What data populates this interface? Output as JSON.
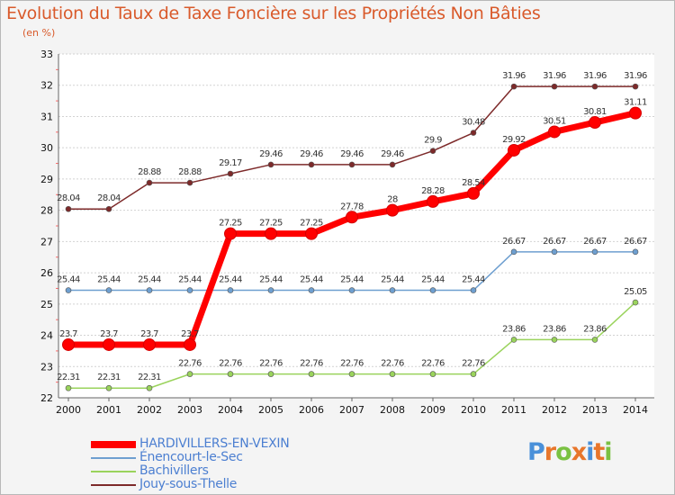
{
  "chart_title": "Evolution du Taux de Taxe Foncière sur les Propriétés Non Bâties",
  "unit_label": "(en %)",
  "logo": {
    "text": "Proxiti",
    "letter_colors": [
      "#4a90d9",
      "#e8762b",
      "#7ac142",
      "#e8762b",
      "#4a90d9",
      "#e8762b",
      "#7ac142"
    ]
  },
  "chart_data": {
    "type": "line",
    "title": "Evolution du Taux de Taxe Foncière sur les Propriétés Non Bâties",
    "ylabel": "(en %)",
    "xlabel": "",
    "x": [
      "2000",
      "2001",
      "2002",
      "2003",
      "2004",
      "2005",
      "2006",
      "2007",
      "2008",
      "2009",
      "2010",
      "2011",
      "2012",
      "2013",
      "2014"
    ],
    "ylim": [
      22,
      33
    ],
    "yticks": [
      "22",
      "23",
      "24",
      "25",
      "26",
      "27",
      "28",
      "29",
      "30",
      "31",
      "32",
      "33"
    ],
    "grid": "horizontal",
    "legend_position": "bottom-left",
    "series": [
      {
        "name": "HARDIVILLERS-EN-VEXIN",
        "color": "#ff0000",
        "values": [
          23.7,
          23.7,
          23.7,
          23.7,
          27.25,
          27.25,
          27.25,
          27.78,
          28,
          28.28,
          28.54,
          29.92,
          30.51,
          30.81,
          31.11
        ],
        "labels": [
          "23.7",
          "23.7",
          "23.7",
          "23.7",
          "27.25",
          "27.25",
          "27.25",
          "27.78",
          "28",
          "28.28",
          "28.54",
          "29.92",
          "30.51",
          "30.81",
          "31.11"
        ]
      },
      {
        "name": "Énencourt-le-Sec",
        "color": "#6e9fd0",
        "values": [
          25.44,
          25.44,
          25.44,
          25.44,
          25.44,
          25.44,
          25.44,
          25.44,
          25.44,
          25.44,
          25.44,
          26.67,
          26.67,
          26.67,
          26.67
        ],
        "labels": [
          "25.44",
          "25.44",
          "25.44",
          "25.44",
          "25.44",
          "25.44",
          "25.44",
          "25.44",
          "25.44",
          "25.44",
          "25.44",
          "26.67",
          "26.67",
          "26.67",
          "26.67"
        ]
      },
      {
        "name": "Bachivillers",
        "color": "#9ad35c",
        "values": [
          22.31,
          22.31,
          22.31,
          22.76,
          22.76,
          22.76,
          22.76,
          22.76,
          22.76,
          22.76,
          22.76,
          23.86,
          23.86,
          23.86,
          25.05
        ],
        "labels": [
          "22.31",
          "22.31",
          "22.31",
          "22.76",
          "22.76",
          "22.76",
          "22.76",
          "22.76",
          "22.76",
          "22.76",
          "22.76",
          "23.86",
          "23.86",
          "23.86",
          "25.05"
        ]
      },
      {
        "name": "Jouy-sous-Thelle",
        "color": "#7d2a2a",
        "values": [
          28.04,
          28.04,
          28.88,
          28.88,
          29.17,
          29.46,
          29.46,
          29.46,
          29.46,
          29.9,
          30.48,
          31.96,
          31.96,
          31.96,
          31.96
        ],
        "labels": [
          "28.04",
          "28.04",
          "28.88",
          "28.88",
          "29.17",
          "29.46",
          "29.46",
          "29.46",
          "29.46",
          "29.9",
          "30.48",
          "31.96",
          "31.96",
          "31.96",
          "31.96"
        ]
      }
    ]
  }
}
